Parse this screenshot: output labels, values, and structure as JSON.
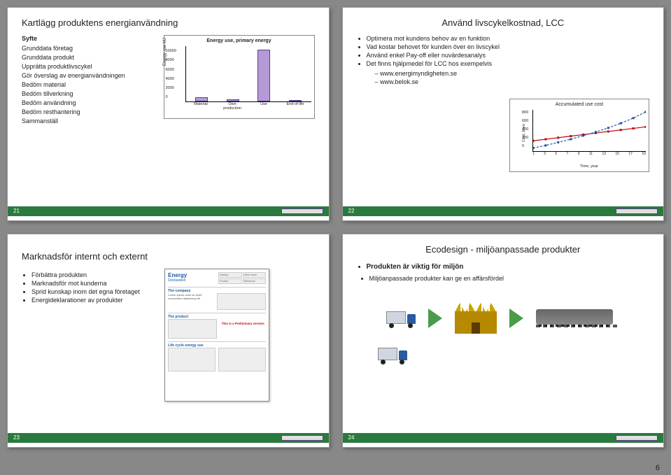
{
  "page_number": "6",
  "slides": {
    "s1": {
      "title": "Kartlägg produktens energianvändning",
      "lead": "Syfte",
      "items": [
        "Grunddata företag",
        "Grunddata produkt",
        "Upprätta produktlivscykel",
        "Gör överslag av energianvändningen",
        "Bedöm material",
        "Bedöm tillverkning",
        "Bedöm användning",
        "Bedöm resthantering",
        "Sammanställ"
      ],
      "page": "21",
      "chart": {
        "type": "bar",
        "title": "Energy use, primary energy",
        "ylabel": "Energy use MJ",
        "categories": [
          "Material",
          "Own production",
          "Use",
          "End-of-life"
        ],
        "values": [
          800,
          400,
          9200,
          150
        ],
        "ylim": [
          0,
          10000
        ],
        "ytick_step": 2000,
        "bar_color": "#b49bd6",
        "bar_border": "#5c3f88",
        "background_color": "#ffffff"
      }
    },
    "s2": {
      "title": "Använd livscykelkostnad, LCC",
      "bullets": [
        "Optimera mot kundens behov av en funktion",
        "Vad kostar behovet för kunden över en livscykel",
        "Använd enkel Pay-off eller nuvärdesanalys",
        "Det finns hjälpmedel för LCC hos exempelvis"
      ],
      "sub_links": [
        "www.energimyndigheten.se",
        "www.belok.se"
      ],
      "page": "22",
      "chart": {
        "type": "line",
        "title": "Accumulated use cost",
        "ylabel": "Cost, Euro",
        "xlabel": "Time, year",
        "x_values": [
          1,
          3,
          5,
          7,
          9,
          11,
          13,
          15,
          17,
          19
        ],
        "ylim": [
          0,
          800
        ],
        "ytick_step": 200,
        "series": [
          {
            "color": "#c00000",
            "marker": "square",
            "y": [
              200,
              230,
              260,
              290,
              320,
              350,
              380,
              410,
              440,
              470
            ]
          },
          {
            "color": "#1f4ea0",
            "marker": "square",
            "dash": true,
            "y": [
              60,
              110,
              170,
              230,
              300,
              370,
              450,
              540,
              640,
              760
            ]
          }
        ],
        "background_color": "#ffffff"
      }
    },
    "s3": {
      "title": "Marknadsför internt och externt",
      "bullets": [
        "Förbättra produkten",
        "Marknadsför mot kunderna",
        "Sprid kunskap inom det egna företaget",
        "Energideklarationer av produkter"
      ],
      "page": "23",
      "doc": {
        "heading": "Energy",
        "sub": "Declaration",
        "tabs": [
          "Industry",
          "Other home",
          "Product",
          "Reference"
        ],
        "sec1": "The company",
        "sec2": "The product",
        "red": "This is a Preliminary version",
        "sec3": "Life cycle energy use"
      }
    },
    "s4": {
      "title": "Ecodesign - miljöanpassade produkter",
      "b1": "Produkten är viktig för miljön",
      "b2": "Miljöanpassade produkter kan ge en affärsfördel",
      "page": "24"
    }
  }
}
